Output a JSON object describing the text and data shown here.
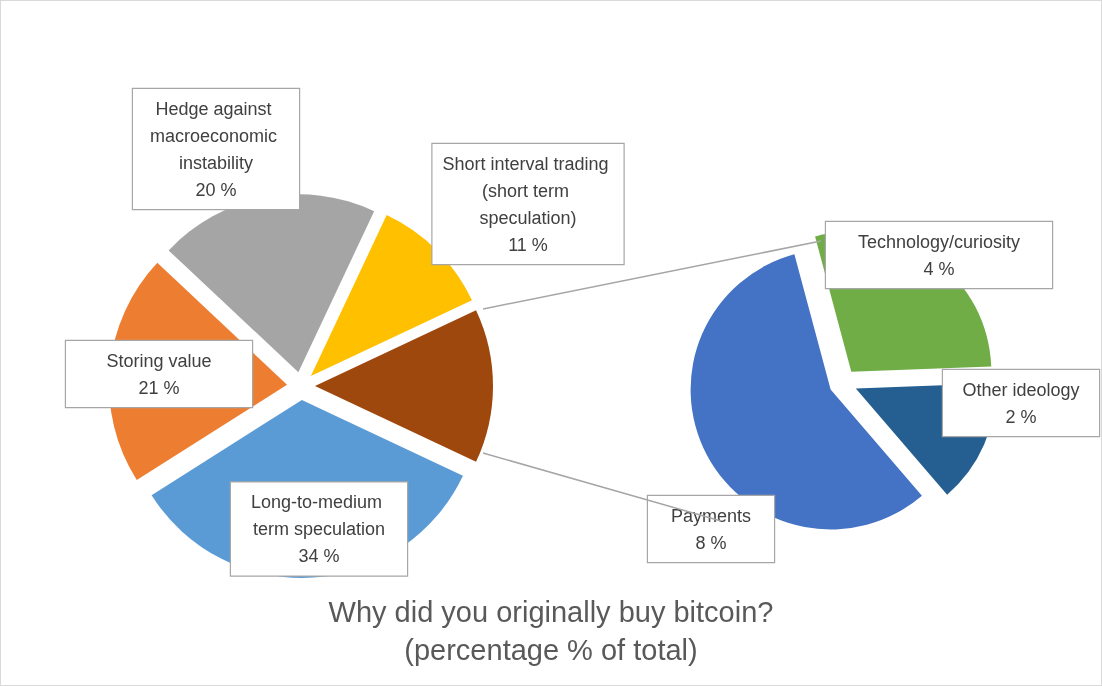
{
  "chart_data": [
    {
      "type": "pie",
      "title": "Why did you originally buy bitcoin?\n(percentage % of total)",
      "categories": [
        "Hedge against macroeconomic instability",
        "Short interval trading (short term speculation)",
        null,
        "Long-to-medium term speculation",
        "Storing value"
      ],
      "values": [
        20,
        11,
        14,
        34,
        21
      ],
      "colors": [
        "#a5a5a5",
        "#ffc000",
        "#9e480e",
        "#5b9bd5",
        "#ed7d31"
      ],
      "value_labels": [
        "20 %",
        "11 %",
        null,
        "34 %",
        "21 %"
      ],
      "legend": false
    },
    {
      "type": "pie",
      "categories": [
        "Technology/curiosity",
        "Other ideology",
        "Payments"
      ],
      "values": [
        4,
        2,
        8
      ],
      "colors": [
        "#70ad47",
        "#255e91",
        "#4472c4"
      ],
      "value_labels": [
        "4 %",
        "2 %",
        "8 %"
      ],
      "legend": false
    }
  ]
}
